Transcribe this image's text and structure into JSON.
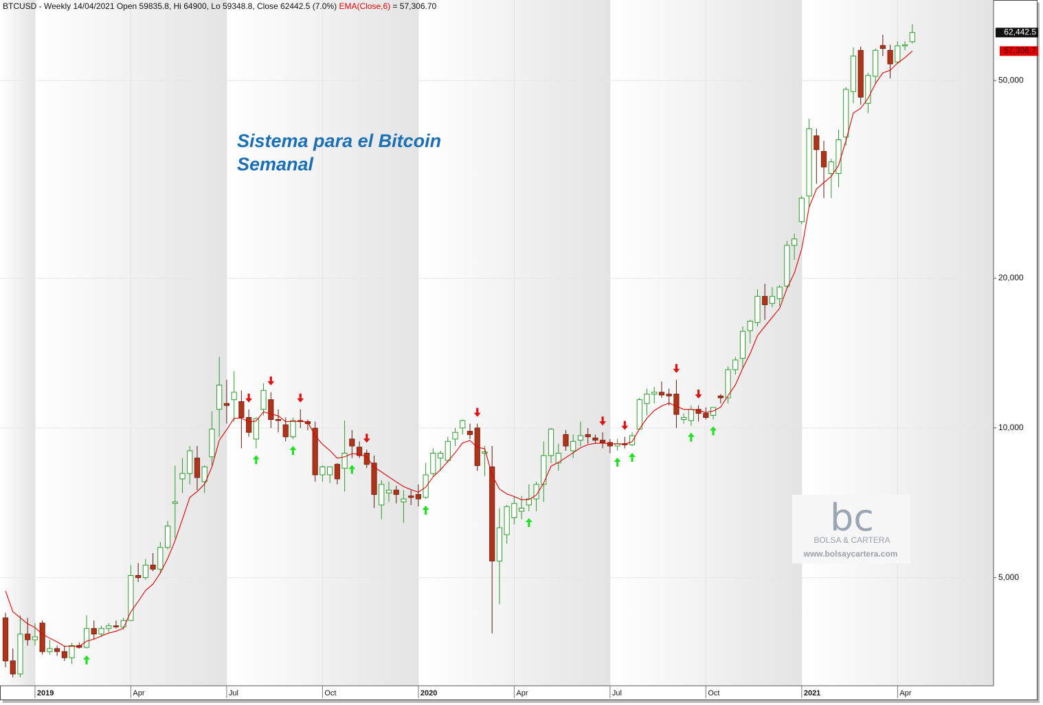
{
  "chart_data": {
    "type": "candlestick",
    "title": "BTCUSD - Weekly 14/04/2021 Open 59835.8, Hi 64900, Lo 59348.8, Close 62442.5 (7.0%)",
    "annotations": [
      "Sistema para el Bitcoin",
      "Semanal"
    ],
    "log_scale": true,
    "grid": true,
    "ylim": [
      3030,
      72600
    ],
    "yticks": [
      {
        "value": 5000,
        "label": "5,000"
      },
      {
        "value": 10000,
        "label": "10,000"
      },
      {
        "value": 20000,
        "label": "20,000"
      },
      {
        "value": 50000,
        "label": "50,000"
      }
    ],
    "categories": [
      null,
      null,
      null,
      null,
      "2019",
      null,
      null,
      null,
      null,
      null,
      null,
      null,
      null,
      null,
      null,
      null,
      null,
      "Apr",
      null,
      null,
      null,
      null,
      null,
      null,
      null,
      null,
      null,
      null,
      null,
      null,
      "Jul",
      null,
      null,
      null,
      null,
      null,
      null,
      null,
      null,
      null,
      null,
      null,
      null,
      "Oct",
      null,
      null,
      null,
      null,
      null,
      null,
      null,
      null,
      null,
      null,
      null,
      null,
      "2020",
      null,
      null,
      null,
      null,
      null,
      null,
      null,
      null,
      null,
      null,
      null,
      null,
      "Apr",
      null,
      null,
      null,
      null,
      null,
      null,
      null,
      null,
      null,
      null,
      null,
      null,
      "Jul",
      null,
      null,
      null,
      null,
      null,
      null,
      null,
      null,
      null,
      null,
      null,
      null,
      "Oct",
      null,
      null,
      null,
      null,
      null,
      null,
      null,
      null,
      null,
      null,
      null,
      null,
      "2021",
      null,
      null,
      null,
      null,
      null,
      null,
      null,
      null,
      null,
      null,
      null,
      null,
      "Apr",
      null,
      null
    ],
    "candles": {
      "up_color": "#2b9a2b",
      "down_color": "#b0341a",
      "last_label": "62,442.5",
      "open": [
        4150,
        3400,
        3200,
        3850,
        3750,
        4050,
        3550,
        3600,
        3550,
        3450,
        3650,
        3620,
        3950,
        3850,
        3950,
        4000,
        3980,
        4100,
        5050,
        5000,
        5300,
        5200,
        5750,
        7050,
        7900,
        8100,
        8700,
        7800,
        8750,
        10900,
        11200,
        11400,
        11300,
        10500,
        9500,
        10900,
        11400,
        10400,
        10150,
        9600,
        10350,
        10300,
        9990,
        8050,
        8050,
        8450,
        8300,
        9500,
        9150,
        8900,
        8500,
        7000,
        7400,
        7500,
        7100,
        7300,
        7350,
        7250,
        8100,
        8700,
        8600,
        9500,
        10000,
        9850,
        10000,
        8900,
        8350,
        5400,
        6100,
        6600,
        6800,
        7000,
        7200,
        7700,
        8800,
        8500,
        9700,
        9000,
        9450,
        9700,
        9550,
        9450,
        9350,
        9200,
        9300,
        9250,
        9950,
        11200,
        11700,
        11800,
        11700,
        11700,
        10400,
        10350,
        10900,
        10700,
        10600,
        11600,
        11500,
        13100,
        13800,
        15700,
        16300,
        18400,
        17800,
        18200,
        19300,
        23300,
        26000,
        29300,
        38700,
        36000,
        32500,
        32500,
        38500,
        47500,
        57500,
        45000,
        51000,
        58800,
        57500,
        54500,
        58700,
        59835.8
      ],
      "high": [
        4250,
        3600,
        4200,
        4150,
        4050,
        4100,
        3750,
        3650,
        3650,
        3700,
        3700,
        4200,
        4100,
        4000,
        4050,
        4100,
        4150,
        5300,
        5350,
        5450,
        5600,
        5900,
        6500,
        8400,
        8700,
        9200,
        9200,
        8400,
        10800,
        13900,
        12500,
        13000,
        11900,
        10900,
        10500,
        12300,
        11800,
        10900,
        10500,
        10500,
        10900,
        10400,
        10300,
        8400,
        8350,
        8500,
        10350,
        9900,
        9400,
        9050,
        8800,
        7850,
        7800,
        7650,
        7500,
        7500,
        7700,
        8500,
        9100,
        9000,
        9600,
        10000,
        10400,
        10200,
        10200,
        9200,
        9200,
        6900,
        7000,
        7300,
        7300,
        7700,
        7800,
        9400,
        10000,
        9300,
        9900,
        9700,
        10300,
        10000,
        9700,
        9800,
        9500,
        9500,
        9600,
        9800,
        11500,
        12000,
        12100,
        12400,
        12000,
        12500,
        10700,
        11100,
        11100,
        11000,
        11000,
        11700,
        13300,
        13900,
        16000,
        16500,
        19000,
        19500,
        19200,
        19400,
        23800,
        24600,
        29300,
        41900,
        40000,
        37800,
        34800,
        39800,
        48500,
        58300,
        58500,
        51800,
        58000,
        61800,
        59000,
        60000,
        60000,
        64900
      ],
      "low": [
        3300,
        3150,
        3150,
        3650,
        3650,
        3500,
        3500,
        3480,
        3400,
        3350,
        3600,
        3600,
        3750,
        3800,
        3880,
        3950,
        3930,
        4100,
        4900,
        4950,
        5150,
        5100,
        5700,
        6000,
        7400,
        7700,
        7500,
        7400,
        8400,
        9600,
        10200,
        10300,
        9100,
        9600,
        9100,
        10600,
        10000,
        9800,
        9400,
        9500,
        10000,
        9900,
        7800,
        7800,
        7750,
        7700,
        7450,
        8700,
        8700,
        8300,
        6900,
        6550,
        7100,
        7050,
        6450,
        7000,
        6950,
        7200,
        8000,
        8200,
        8500,
        9200,
        9700,
        9500,
        8200,
        8000,
        3860,
        4420,
        5850,
        6400,
        6550,
        6800,
        6800,
        7100,
        8500,
        8200,
        9000,
        8700,
        9200,
        9300,
        9300,
        9100,
        8900,
        9000,
        9100,
        9200,
        9950,
        10600,
        11200,
        11500,
        11100,
        10000,
        10200,
        10100,
        10300,
        10400,
        10400,
        11200,
        11200,
        12800,
        13200,
        14800,
        16000,
        16500,
        17500,
        17600,
        19000,
        21800,
        25700,
        27800,
        31000,
        29000,
        29000,
        30500,
        37000,
        45000,
        44700,
        43000,
        49300,
        56000,
        50500,
        54000,
        57500,
        59348.8
      ],
      "close": [
        3400,
        3200,
        3850,
        3750,
        3800,
        3550,
        3600,
        3550,
        3450,
        3650,
        3620,
        3950,
        3850,
        3950,
        4000,
        3980,
        4100,
        5050,
        5000,
        5300,
        5200,
        5750,
        6350,
        7100,
        8100,
        9000,
        7950,
        8350,
        9950,
        12200,
        11100,
        11800,
        10500,
        9800,
        10450,
        11900,
        10400,
        10350,
        9600,
        10350,
        10300,
        10200,
        8050,
        8350,
        8350,
        7900,
        8900,
        9200,
        8800,
        8450,
        7350,
        7700,
        7500,
        7350,
        7200,
        7250,
        7200,
        8050,
        8900,
        8900,
        9400,
        9800,
        10350,
        9700,
        8400,
        8950,
        5400,
        6300,
        6950,
        7050,
        6900,
        7200,
        7700,
        8800,
        9950,
        8900,
        9200,
        9400,
        9650,
        9600,
        9450,
        9350,
        9200,
        9300,
        9250,
        9650,
        11400,
        11700,
        11800,
        11650,
        11600,
        10650,
        10500,
        10900,
        10700,
        10500,
        11000,
        11500,
        13100,
        13700,
        15650,
        16400,
        18400,
        17700,
        18400,
        19200,
        23300,
        24000,
        29000,
        40000,
        36300,
        33500,
        34300,
        38000,
        48000,
        56000,
        46300,
        51200,
        57500,
        58000,
        54000,
        58700,
        59000,
        62442.5
      ]
    },
    "ema": {
      "name": "EMA(Close,6)",
      "value_label": "= 57,306.70",
      "color": "#e00000",
      "last_label": "57,306.7",
      "values": [
        4700,
        4271,
        4151,
        4036,
        3969,
        3849,
        3778,
        3713,
        3638,
        3641,
        3635,
        3725,
        3761,
        3815,
        3868,
        3900,
        3957,
        4269,
        4478,
        4713,
        4852,
        5109,
        5463,
        5931,
        6551,
        7251,
        7451,
        7708,
        8348,
        9449,
        9921,
        10458,
        10470,
        10279,
        10328,
        10777,
        10669,
        10578,
        10299,
        10314,
        10310,
        10279,
        9642,
        9273,
        9009,
        8692,
        8751,
        8879,
        8856,
        8740,
        8343,
        8159,
        7971,
        7794,
        7624,
        7517,
        7426,
        7604,
        7974,
        8239,
        8571,
        8922,
        9330,
        9436,
        9140,
        9086,
        8033,
        7538,
        7370,
        7279,
        7171,
        7179,
        7328,
        7749,
        8378,
        8527,
        8719,
        8914,
        9124,
        9260,
        9314,
        9324,
        9289,
        9292,
        9280,
        9386,
        9961,
        10458,
        10841,
        11072,
        11223,
        11059,
        10899,
        10899,
        10842,
        10744,
        10817,
        11012,
        11609,
        12206,
        13190,
        14107,
        15333,
        16009,
        16692,
        17409,
        19092,
        20494,
        22924,
        27803,
        30231,
        31165,
        32061,
        33758,
        37827,
        43019,
        43956,
        46026,
        49304,
        51788,
        52420,
        54214,
        55581,
        57306.7
      ]
    },
    "buy_signals": [
      11,
      34,
      39,
      47,
      57,
      71,
      83,
      85,
      93,
      96
    ],
    "sell_signals": [
      33,
      36,
      40,
      49,
      64,
      81,
      84,
      91,
      94
    ],
    "buy_color": "#22e022",
    "sell_color": "#e01010"
  },
  "watermark": {
    "logo": "bc",
    "name": "BOLSA & CARTERA",
    "url": "www.bolsaycartera.com"
  }
}
